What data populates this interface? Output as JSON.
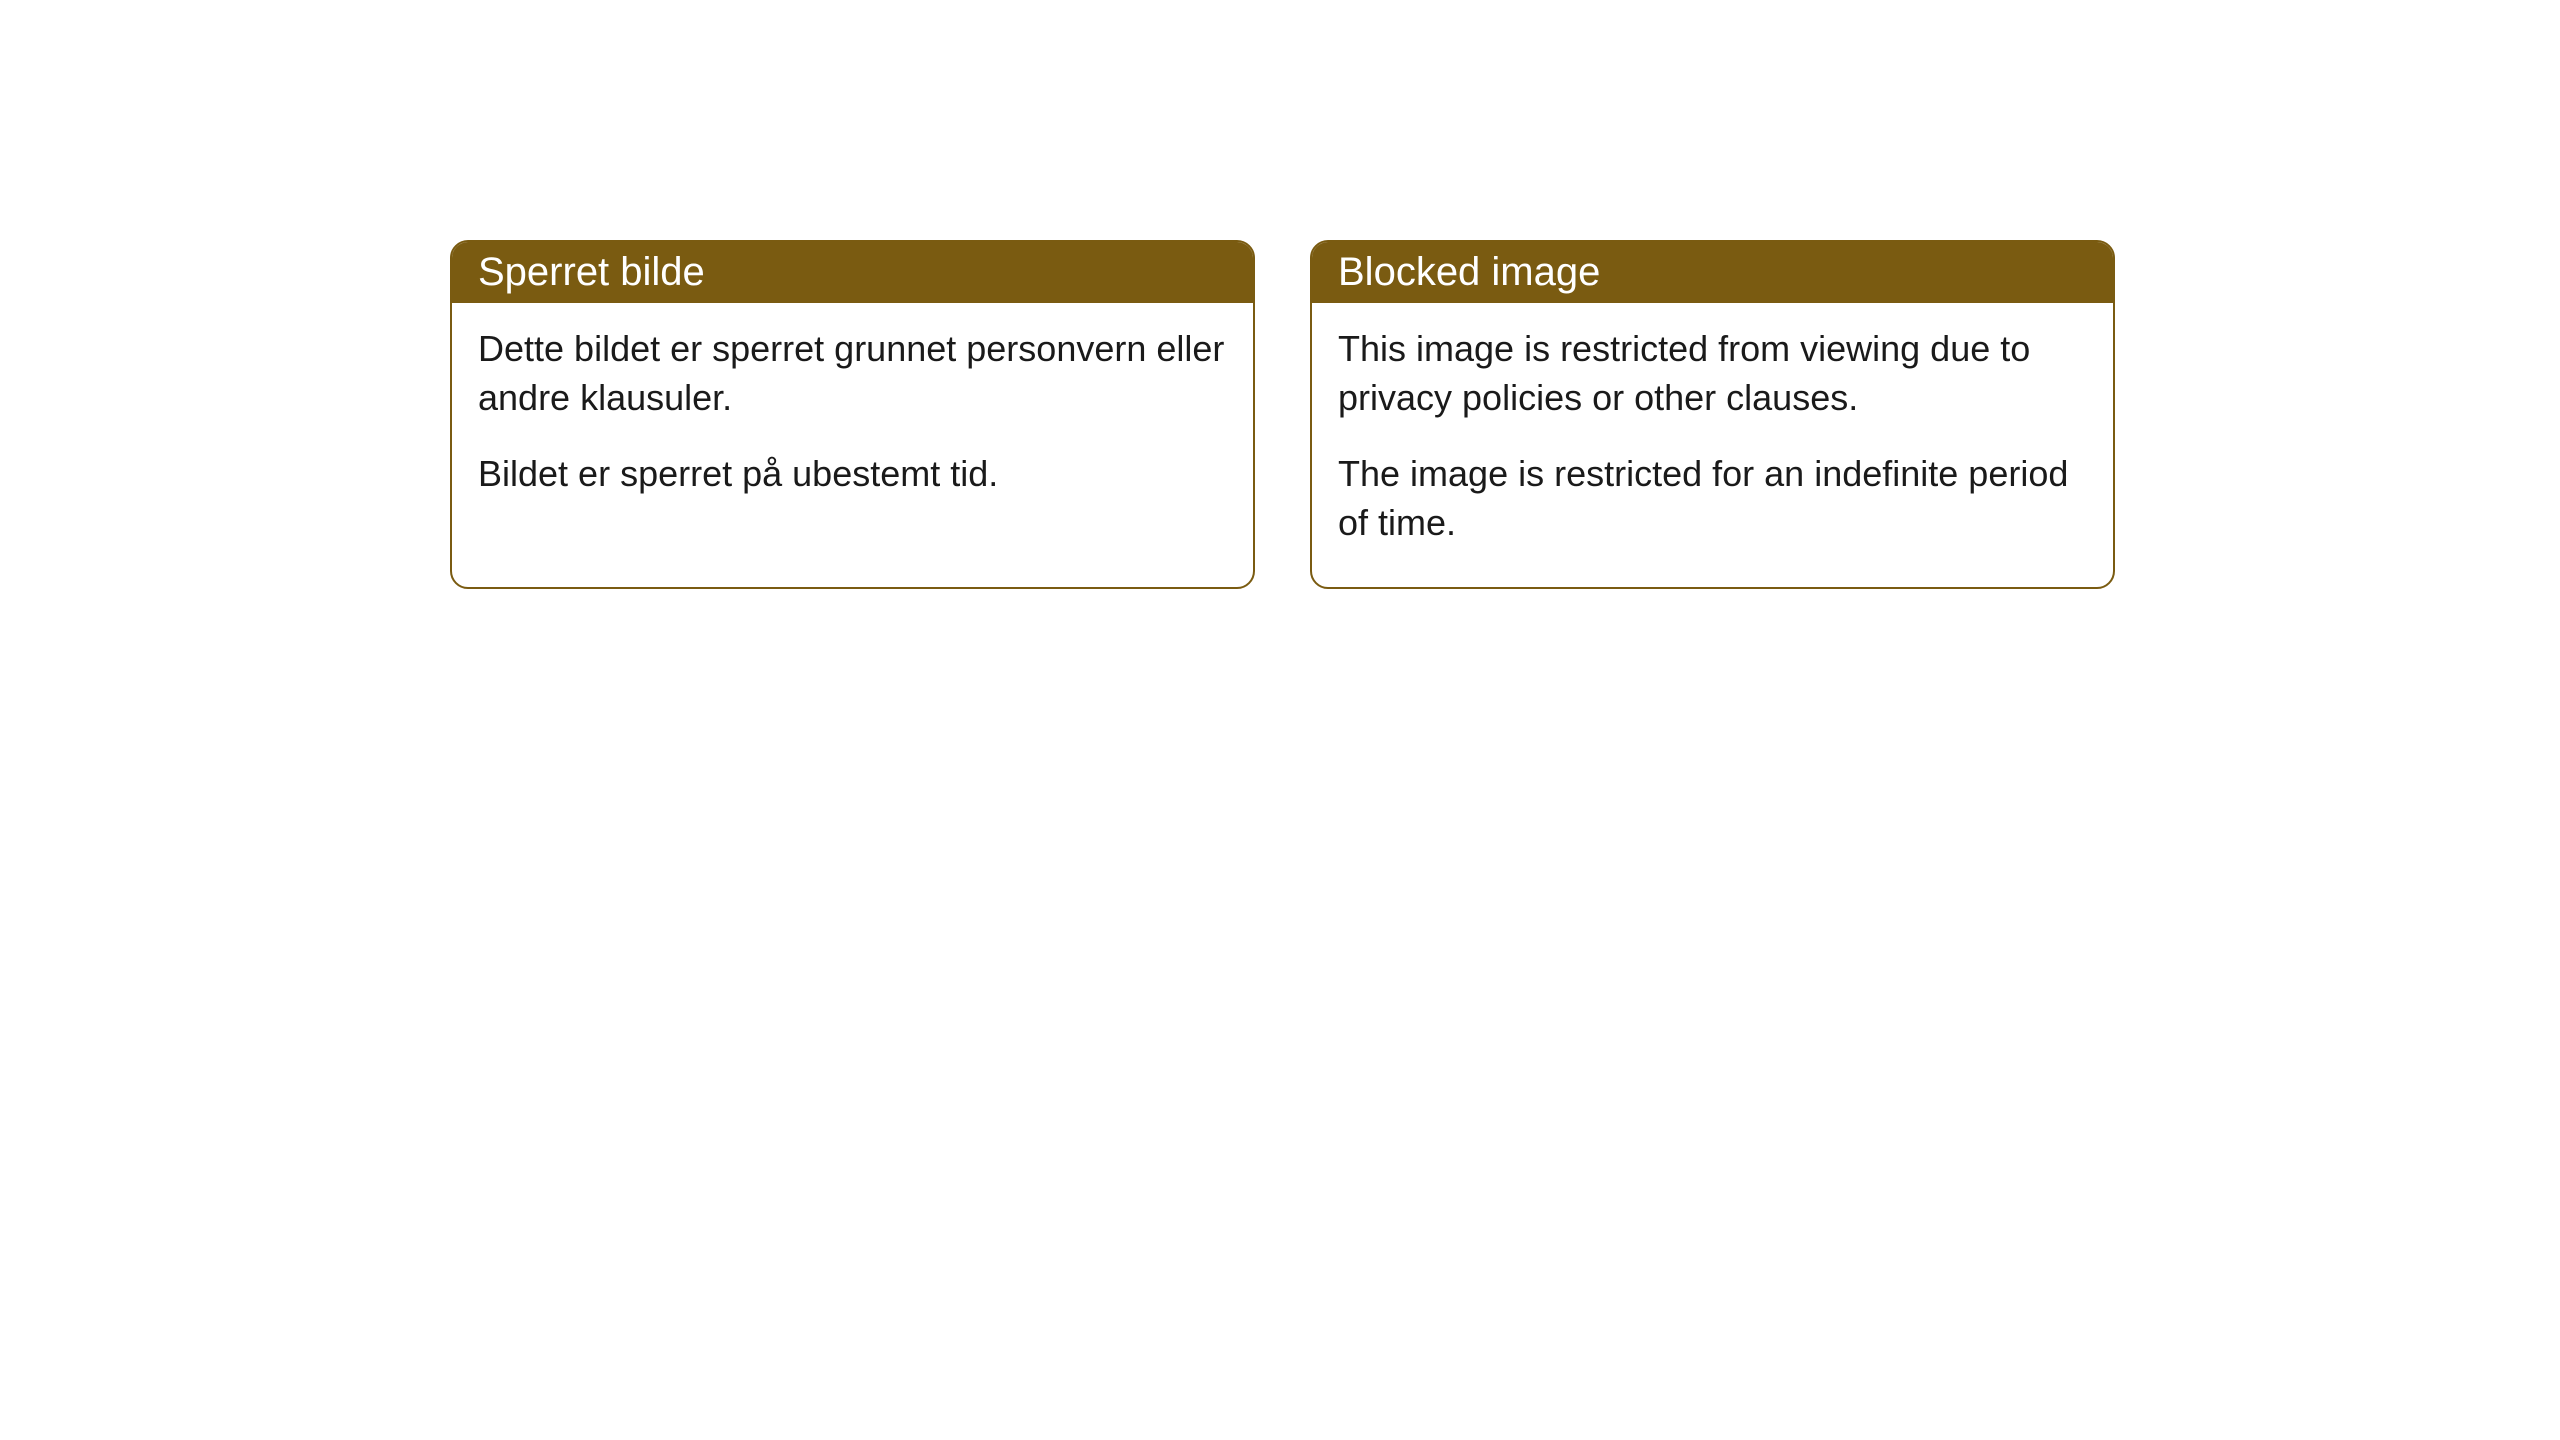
{
  "cards": [
    {
      "title": "Sperret bilde",
      "paragraph1": "Dette bildet er sperret grunnet personvern eller andre klausuler.",
      "paragraph2": "Bildet er sperret på ubestemt tid."
    },
    {
      "title": "Blocked image",
      "paragraph1": "This image is restricted from viewing due to privacy policies or other clauses.",
      "paragraph2": "The image is restricted for an indefinite period of time."
    }
  ],
  "styling": {
    "header_background_color": "#7a5b11",
    "header_text_color": "#ffffff",
    "border_color": "#7a5b11",
    "body_background_color": "#ffffff",
    "body_text_color": "#1a1a1a",
    "border_radius": 18,
    "title_fontsize": 40,
    "body_fontsize": 36
  }
}
